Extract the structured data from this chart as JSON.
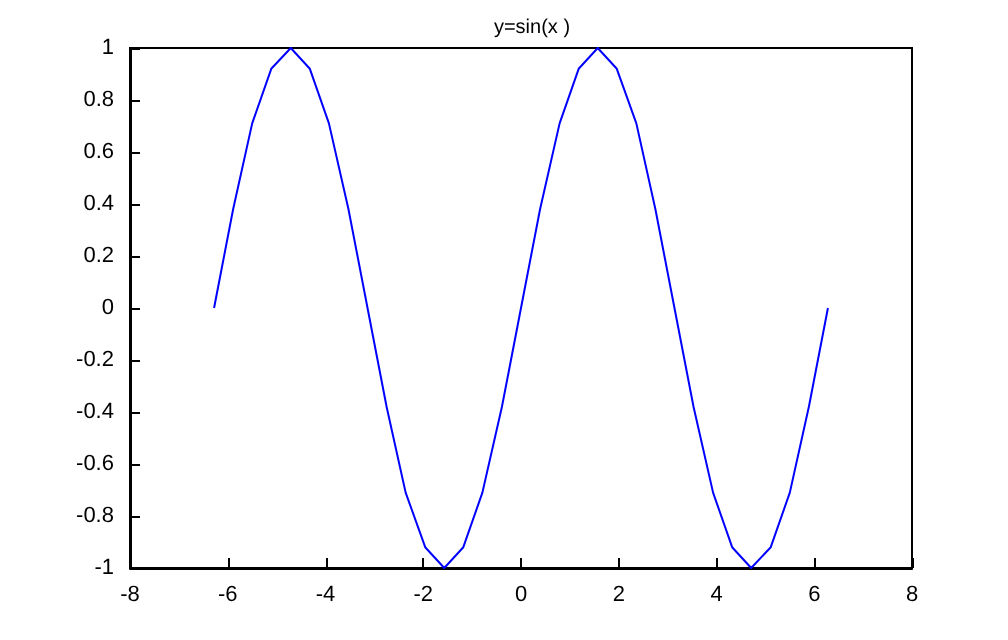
{
  "chart_data": {
    "type": "line",
    "title": "y=sin(x )",
    "x": [
      -6.28,
      -5.89,
      -5.5,
      -5.11,
      -4.71,
      -4.32,
      -3.93,
      -3.53,
      -3.14,
      -2.75,
      -2.36,
      -1.96,
      -1.57,
      -1.18,
      -0.79,
      -0.39,
      0,
      0.39,
      0.79,
      1.18,
      1.57,
      1.96,
      2.36,
      2.75,
      3.14,
      3.53,
      3.93,
      4.32,
      4.71,
      5.11,
      5.5,
      5.89,
      6.28
    ],
    "series": [
      {
        "color": "#0000ff",
        "values": [
          0,
          0.38,
          0.71,
          0.92,
          1,
          0.92,
          0.71,
          0.38,
          0,
          -0.38,
          -0.71,
          -0.92,
          -1,
          -0.92,
          -0.71,
          -0.38,
          0,
          0.38,
          0.71,
          0.92,
          1,
          0.92,
          0.71,
          0.38,
          0,
          -0.38,
          -0.71,
          -0.92,
          -1,
          -0.92,
          -0.71,
          -0.38,
          0
        ]
      }
    ],
    "xlim": [
      -8,
      8
    ],
    "xticks": [
      -8,
      -6,
      -4,
      -2,
      0,
      2,
      4,
      6,
      8
    ],
    "ylim": [
      -1,
      1
    ],
    "yticks": [
      -1,
      -0.8,
      -0.6,
      -0.4,
      -0.2,
      0,
      0.2,
      0.4,
      0.6,
      0.8,
      1
    ],
    "marker": "none",
    "line_style": "solid"
  }
}
